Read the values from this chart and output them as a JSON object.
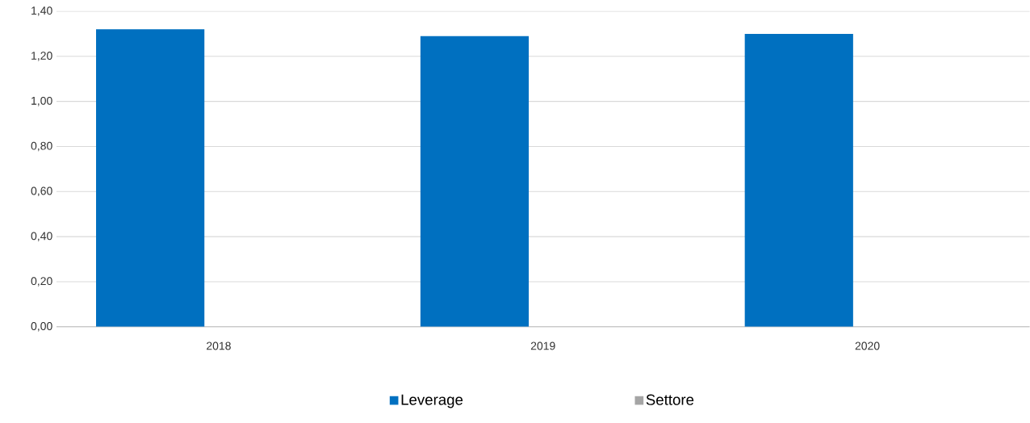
{
  "chart_data": {
    "type": "bar",
    "categories": [
      "2018",
      "2019",
      "2020"
    ],
    "series": [
      {
        "name": "Leverage",
        "color": "#0070c0",
        "values": [
          1.32,
          1.29,
          1.3
        ]
      },
      {
        "name": "Settore",
        "color": "#a5a5a5",
        "values": [
          null,
          null,
          null
        ]
      }
    ],
    "ylim": [
      0,
      1.4
    ],
    "yticks": [
      {
        "value": 0,
        "label": "0,00"
      },
      {
        "value": 0.2,
        "label": "0,20"
      },
      {
        "value": 0.4,
        "label": "0,40"
      },
      {
        "value": 0.6,
        "label": "0,60"
      },
      {
        "value": 0.8,
        "label": "0,80"
      },
      {
        "value": 1.0,
        "label": "1,00"
      },
      {
        "value": 1.2,
        "label": "1,20"
      },
      {
        "value": 1.4,
        "label": "1,40"
      }
    ],
    "grid": "y",
    "legend": "bottom"
  }
}
